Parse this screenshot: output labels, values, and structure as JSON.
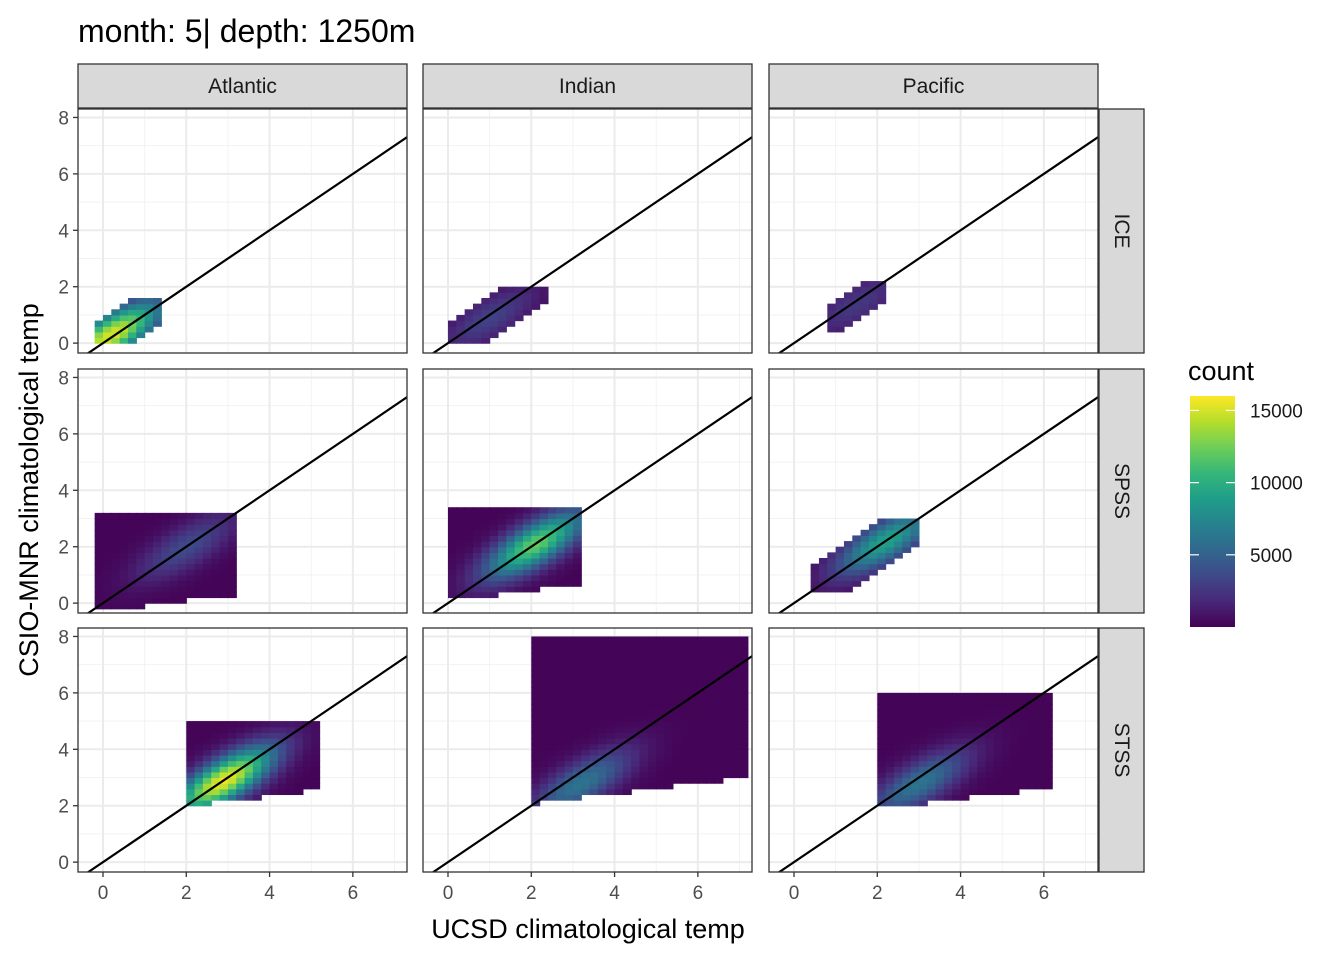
{
  "chart_data": {
    "type": "heatmap",
    "title": "month: 5| depth: 1250m",
    "xlabel": "UCSD climatological temp",
    "ylabel": "CSIO-MNR climatological temp",
    "xlim": [
      -0.6,
      7.3
    ],
    "ylim": [
      -0.35,
      8.3
    ],
    "x_ticks": [
      0,
      2,
      4,
      6
    ],
    "y_ticks": [
      0,
      2,
      4,
      6,
      8
    ],
    "facet_columns": [
      "Atlantic",
      "Indian",
      "Pacific"
    ],
    "facet_rows": [
      "ICE",
      "SPSS",
      "STSS"
    ],
    "reference_line": {
      "slope": 1,
      "intercept": 0
    },
    "legend": {
      "title": "count",
      "breaks": [
        5000,
        10000,
        15000
      ],
      "range": [
        0,
        16000
      ],
      "colors": [
        "#440154",
        "#482878",
        "#3e4989",
        "#31688e",
        "#26828e",
        "#1f9e89",
        "#35b779",
        "#6ece58",
        "#b5de2b",
        "#fde725"
      ]
    },
    "panels": [
      {
        "column": "Atlantic",
        "row": "ICE",
        "x_range": [
          -0.2,
          1.4
        ],
        "y_range": [
          0.0,
          1.5
        ],
        "peak": [
          0.2,
          0.3
        ],
        "peak_count": 15000
      },
      {
        "column": "Indian",
        "row": "ICE",
        "x_range": [
          0.0,
          2.3
        ],
        "y_range": [
          0.1,
          1.9
        ],
        "peak": [
          1.0,
          0.9
        ],
        "peak_count": 3000
      },
      {
        "column": "Pacific",
        "row": "ICE",
        "x_range": [
          0.9,
          2.1
        ],
        "y_range": [
          0.6,
          2.0
        ],
        "peak": [
          1.5,
          1.4
        ],
        "peak_count": 2500
      },
      {
        "column": "Atlantic",
        "row": "SPSS",
        "x_range": [
          -0.2,
          3.2
        ],
        "y_range": [
          -0.3,
          3.2
        ],
        "peak": [
          2.0,
          2.0
        ],
        "peak_count": 3500
      },
      {
        "column": "Indian",
        "row": "SPSS",
        "x_range": [
          0.0,
          3.2
        ],
        "y_range": [
          0.1,
          3.4
        ],
        "peak": [
          2.1,
          2.1
        ],
        "peak_count": 12000
      },
      {
        "column": "Pacific",
        "row": "SPSS",
        "x_range": [
          0.5,
          3.0
        ],
        "y_range": [
          0.5,
          3.0
        ],
        "peak": [
          2.2,
          2.2
        ],
        "peak_count": 9000
      },
      {
        "column": "Atlantic",
        "row": "STSS",
        "x_range": [
          2.1,
          5.1
        ],
        "y_range": [
          2.0,
          5.0
        ],
        "peak": [
          2.9,
          2.9
        ],
        "peak_count": 15500
      },
      {
        "column": "Indian",
        "row": "STSS",
        "x_range": [
          2.1,
          7.1
        ],
        "y_range": [
          2.1,
          8.0
        ],
        "peak": [
          3.2,
          2.8
        ],
        "peak_count": 6000
      },
      {
        "column": "Pacific",
        "row": "STSS",
        "x_range": [
          2.0,
          6.1
        ],
        "y_range": [
          1.9,
          6.0
        ],
        "peak": [
          3.0,
          2.8
        ],
        "peak_count": 6000
      }
    ]
  }
}
